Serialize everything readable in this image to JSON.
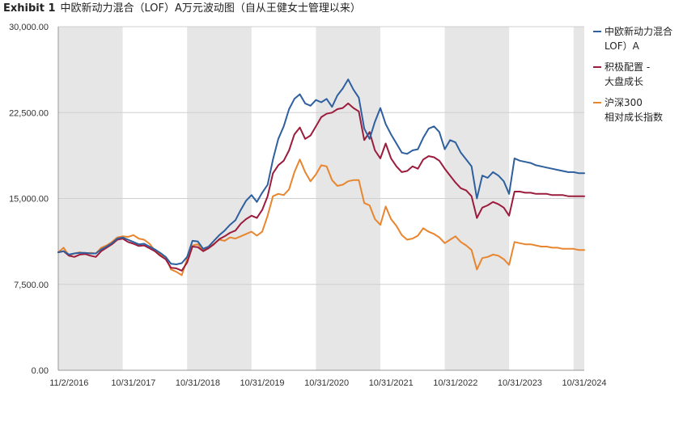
{
  "header": {
    "exhibit": "Exhibit 1",
    "title": "中欧新动力混合（LOF）A万元波动图（自从王健女士管理以来）"
  },
  "chart_data": {
    "type": "line",
    "title": "中欧新动力混合（LOF）A万元波动图（自从王健女士管理以来）",
    "y_ticks": [
      "0.00",
      "7,500.00",
      "15,000.00",
      "22,500.00",
      "30,000.00"
    ],
    "x_ticks": [
      "11/2/2016",
      "10/31/2017",
      "10/31/2018",
      "10/31/2019",
      "10/31/2020",
      "10/31/2021",
      "10/31/2022",
      "10/31/2023",
      "10/31/2024"
    ],
    "ylim": [
      0,
      30000
    ],
    "grid": true,
    "legend_position": "right",
    "shaded_bands": [
      [
        0,
        12
      ],
      [
        24,
        36
      ],
      [
        48,
        60
      ],
      [
        72,
        84
      ],
      [
        96,
        98
      ]
    ],
    "x_index_range": [
      0,
      98
    ],
    "series": [
      {
        "name": "中欧新动力混合（LOF）A",
        "color": "#2e5f9e",
        "values": [
          10300,
          10400,
          10100,
          10200,
          10250,
          10250,
          10200,
          10200,
          10550,
          10800,
          11100,
          11500,
          11600,
          11400,
          11200,
          11000,
          11050,
          10800,
          10550,
          10250,
          9900,
          9300,
          9250,
          9350,
          9900,
          11300,
          11250,
          10600,
          10800,
          11300,
          11800,
          12200,
          12700,
          13100,
          14000,
          14800,
          15300,
          14700,
          15500,
          16200,
          18400,
          20200,
          21300,
          22800,
          23700,
          24100,
          23300,
          23100,
          23600,
          23400,
          23700,
          23000,
          24000,
          24600,
          25400,
          24500,
          23800,
          21100,
          20200,
          21700,
          22900,
          21500,
          20600,
          19800,
          19000,
          18900,
          19200,
          19300,
          20300,
          21100,
          21300,
          20800,
          19300,
          20100,
          19900,
          19000,
          18400,
          17800,
          15000,
          17000,
          16800,
          17300,
          17000,
          16500,
          15400,
          18500,
          18300,
          18200,
          18100,
          17900,
          17800,
          17700,
          17600,
          17500,
          17400,
          17300,
          17300,
          17200,
          17200
        ]
      },
      {
        "name": "积极配置 - 大盘成长",
        "color": "#9b1c3c",
        "values": [
          10300,
          10400,
          10000,
          9900,
          10100,
          10150,
          10000,
          9900,
          10400,
          10700,
          11000,
          11400,
          11500,
          11200,
          11050,
          10850,
          10900,
          10650,
          10400,
          10000,
          9700,
          8950,
          8900,
          8700,
          9400,
          10800,
          10750,
          10400,
          10650,
          11000,
          11450,
          11700,
          12000,
          12200,
          12800,
          13200,
          13500,
          13300,
          14000,
          15200,
          17200,
          17900,
          18300,
          19200,
          20600,
          21200,
          20200,
          20500,
          21300,
          22100,
          22400,
          22500,
          22800,
          22900,
          23300,
          22900,
          22600,
          20100,
          20800,
          19200,
          18500,
          19800,
          18500,
          17800,
          17300,
          17400,
          17800,
          17600,
          18400,
          18700,
          18600,
          18300,
          17600,
          17000,
          16400,
          15900,
          15700,
          15200,
          13300,
          14200,
          14400,
          14700,
          14500,
          14200,
          13500,
          15600,
          15600,
          15500,
          15500,
          15400,
          15400,
          15400,
          15300,
          15300,
          15300,
          15200,
          15200,
          15200,
          15200
        ]
      },
      {
        "name": "沪深300 相对成长指数",
        "color": "#e8852f",
        "values": [
          10300,
          10700,
          10000,
          10200,
          10300,
          10200,
          10250,
          10200,
          10700,
          10900,
          11200,
          11600,
          11700,
          11650,
          11800,
          11500,
          11400,
          11050,
          10450,
          10100,
          9900,
          8800,
          8600,
          8300,
          9700,
          10900,
          11000,
          10500,
          10700,
          11050,
          11400,
          11300,
          11600,
          11500,
          11700,
          11900,
          12100,
          11750,
          12100,
          13500,
          15200,
          15400,
          15300,
          15800,
          17300,
          18400,
          17300,
          16500,
          17100,
          17900,
          17800,
          16600,
          16100,
          16200,
          16500,
          16600,
          16600,
          14600,
          14400,
          13200,
          12700,
          14300,
          13200,
          12600,
          11800,
          11400,
          11500,
          11750,
          12400,
          12100,
          11900,
          11600,
          11100,
          11400,
          11700,
          11200,
          10900,
          10500,
          8800,
          9800,
          9900,
          10100,
          10000,
          9700,
          9200,
          11200,
          11100,
          11000,
          11000,
          10900,
          10800,
          10800,
          10700,
          10700,
          10600,
          10600,
          10600,
          10500,
          10500
        ]
      }
    ]
  },
  "legend": {
    "items": [
      {
        "label": "中欧新动力混合\nLOF）A",
        "color": "#2e5f9e"
      },
      {
        "label": "积极配置 -\n大盘成长",
        "color": "#9b1c3c"
      },
      {
        "label": "沪深300\n相对成长指数",
        "color": "#e8852f"
      }
    ]
  }
}
